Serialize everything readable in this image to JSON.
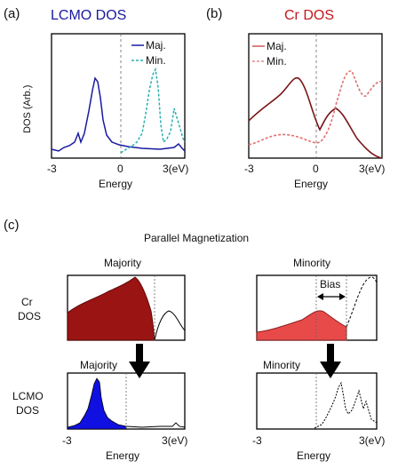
{
  "panel_a": {
    "letter": "(a)",
    "title": "LCMO DOS",
    "ylabel": "DOS (Arb.)",
    "xlabel": "Energy",
    "ticks": [
      "-3",
      "0",
      "3(eV)"
    ],
    "legend": [
      "Maj.",
      "Min."
    ]
  },
  "panel_b": {
    "letter": "(b)",
    "title": "Cr DOS",
    "xlabel": "Energy",
    "ticks": [
      "-3",
      "0",
      "3(eV)"
    ],
    "legend": [
      "Maj.",
      "Min."
    ]
  },
  "panel_c": {
    "letter": "(c)",
    "title": "Parallel Magnetization",
    "majority_top": "Majority",
    "minority_top": "Minority",
    "majority_bottom": "Majority",
    "minority_bottom": "Minority",
    "cr_label": [
      "Cr",
      "DOS"
    ],
    "lcmo_label": [
      "LCMO",
      "DOS"
    ],
    "bias": "Bias",
    "xlabel_left": "Energy",
    "xlabel_right": "Energy",
    "ticks_left": [
      "-3",
      "3(eV)"
    ],
    "ticks_right": [
      "-3",
      "3(eV)"
    ]
  },
  "colors": {
    "lcmo_majority": "#1a1aa0",
    "lcmo_minority": "#2ab0b0",
    "cr_majority": "#7a1418",
    "cr_minority": "#e07070",
    "cr_fill_majority": "#9a1414",
    "cr_fill_minority": "#e84a4a",
    "lcmo_fill_majority": "#1010e0"
  }
}
